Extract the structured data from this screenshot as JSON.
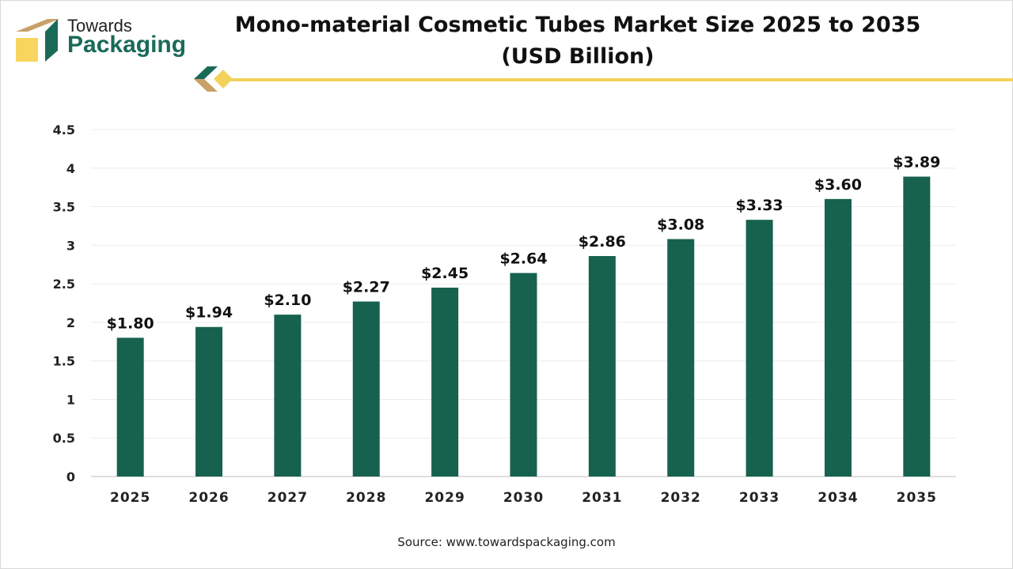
{
  "logo": {
    "line1": "Towards",
    "line2": "Packaging"
  },
  "title": "Mono-material Cosmetic Tubes Market Size 2025 to 2035 (USD Billion)",
  "source": "Source: www.towardspackaging.com",
  "colors": {
    "bar": "#17614f",
    "accent_line": "#f3d25c",
    "logo_green": "#1a6a58",
    "logo_tan": "#c9a068",
    "logo_yellow": "#f8d55e"
  },
  "chart_data": {
    "type": "bar",
    "title": "Mono-material Cosmetic Tubes Market Size 2025 to 2035 (USD Billion)",
    "categories": [
      "2025",
      "2026",
      "2027",
      "2028",
      "2029",
      "2030",
      "2031",
      "2032",
      "2033",
      "2034",
      "2035"
    ],
    "values": [
      1.8,
      1.94,
      2.1,
      2.27,
      2.45,
      2.64,
      2.86,
      3.08,
      3.33,
      3.6,
      3.89
    ],
    "data_labels": [
      "$1.80",
      "$1.94",
      "$2.10",
      "$2.27",
      "$2.45",
      "$2.64",
      "$2.86",
      "$3.08",
      "$3.33",
      "$3.60",
      "$3.89"
    ],
    "yticks": [
      "0",
      "0.5",
      "1",
      "1.5",
      "2",
      "2.5",
      "3",
      "3.5",
      "4",
      "4.5"
    ],
    "ylim": [
      0,
      4.5
    ],
    "grid": true,
    "xlabel": "",
    "ylabel": ""
  }
}
